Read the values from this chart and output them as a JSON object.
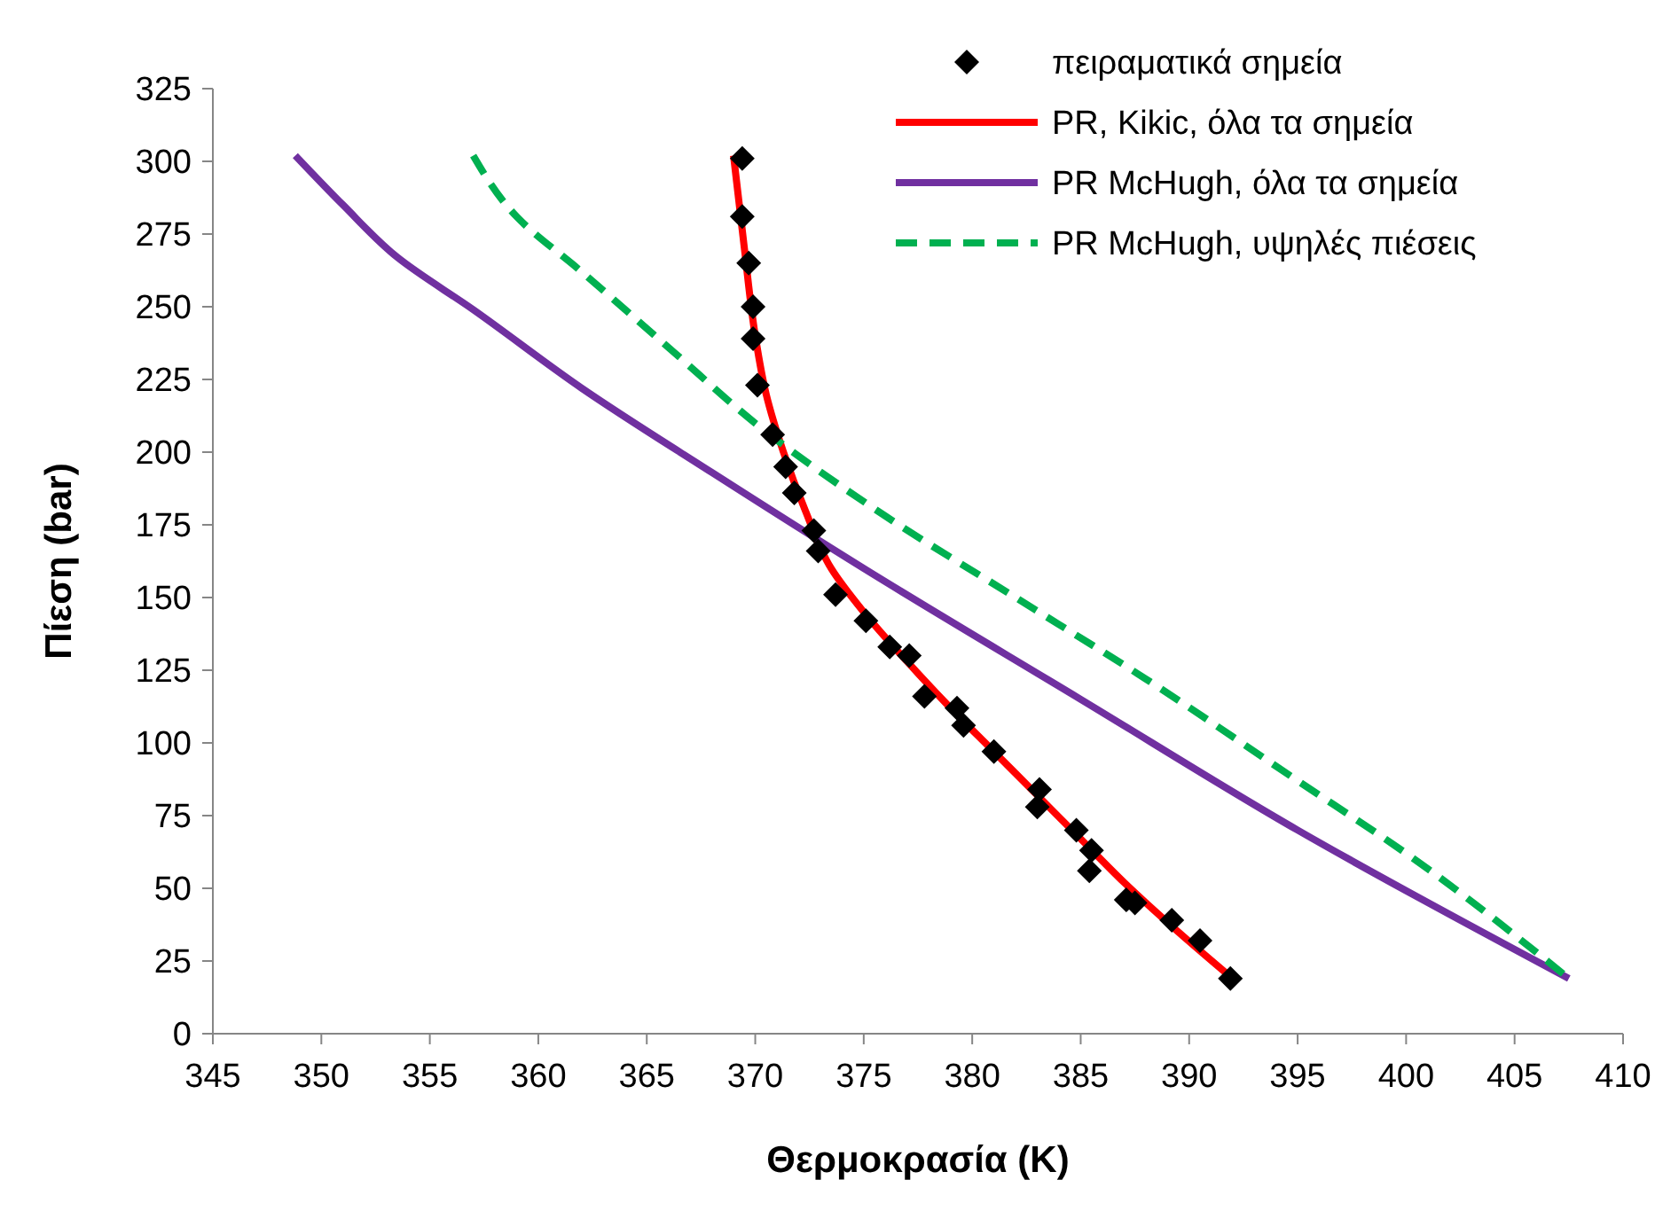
{
  "chart_data": {
    "type": "line",
    "xlabel": "Θερμοκρασία (K)",
    "ylabel": "Πίεση (bar)",
    "xlim": [
      345,
      410
    ],
    "xticks": [
      345,
      350,
      355,
      360,
      365,
      370,
      375,
      380,
      385,
      390,
      395,
      400,
      405,
      410
    ],
    "ylim": [
      0,
      325
    ],
    "yticks": [
      0,
      25,
      50,
      75,
      100,
      125,
      150,
      175,
      200,
      225,
      250,
      275,
      300,
      325
    ],
    "grid": false,
    "legend": "top right",
    "series": [
      {
        "name": "πειραματικά σημεία",
        "type": "scatter",
        "marker": "diamond",
        "color": "#000000",
        "x": [
          369.4,
          369.4,
          369.7,
          369.9,
          369.9,
          370.1,
          370.8,
          371.4,
          371.8,
          372.7,
          372.9,
          373.7,
          375.1,
          376.2,
          377.1,
          377.8,
          379.3,
          379.6,
          381.0,
          383.1,
          383.0,
          384.8,
          385.5,
          385.4,
          387.1,
          387.5,
          389.2,
          390.5,
          391.9
        ],
        "values": [
          301,
          281,
          265,
          250,
          239,
          223,
          206,
          195,
          186,
          173,
          166,
          151,
          142,
          133,
          130,
          116,
          112,
          106,
          97,
          84,
          78,
          70,
          63,
          56,
          46,
          45,
          39,
          32,
          19
        ]
      },
      {
        "name": "PR, Kikic, όλα τα σημεία",
        "line_style": "solid",
        "color": "#ff0000",
        "x": [
          369.0,
          369.5,
          370.0,
          370.5,
          371.3,
          372.3,
          373.5,
          375,
          377,
          379,
          381,
          383,
          385,
          387,
          389.5,
          392
        ],
        "values": [
          302,
          270,
          240,
          220,
          200,
          180,
          160,
          145,
          128,
          112,
          97,
          82,
          67,
          52,
          35,
          19
        ]
      },
      {
        "name": "PR McHugh, όλα τα σημεία",
        "line_style": "solid",
        "color": "#7030a0",
        "x": [
          348.8,
          351,
          353.5,
          357,
          362,
          368,
          375,
          385,
          395,
          407.5
        ],
        "values": [
          302,
          285,
          267,
          249,
          222,
          193,
          160,
          115,
          70,
          19
        ]
      },
      {
        "name": "PR McHugh, υψηλές πιέσεις",
        "line_style": "dashed",
        "color": "#00b050",
        "x": [
          357,
          359,
          362,
          366,
          370.5,
          376,
          382,
          388,
          395,
          400,
          407.5
        ],
        "values": [
          302,
          281,
          262,
          236,
          207,
          178,
          150,
          122,
          87,
          62,
          19
        ]
      }
    ]
  }
}
